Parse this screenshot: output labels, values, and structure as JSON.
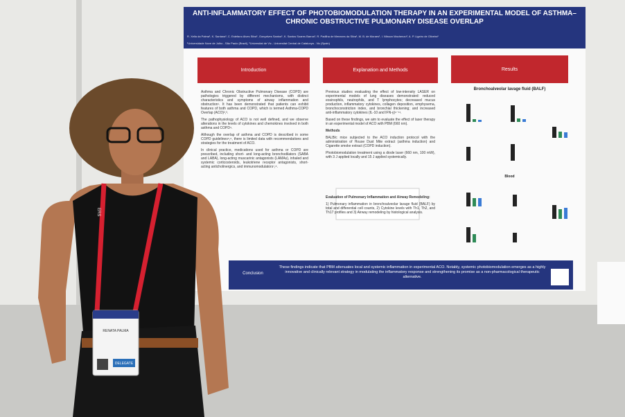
{
  "poster": {
    "title": "ANTI-INFLAMMATORY EFFECT OF PHOTOBIOMODULATION THERAPY IN AN EXPERIMENTAL MODEL OF ASTHMA–CHRONIC OBSTRUCTIVE PULMONARY DISEASE OVERLAP",
    "authors": "R. Xella da Palma¹, K. Santana¹, C. Estefano Alves Silva¹, Gonçalves Santos¹, K. Santos Soares Barros¹, R. Padilha de Menezes da Silva¹, M. B. de Moraes¹, I. Nilsson Machenzo², A. P. Ligeiro de Oliveira¹",
    "affiliations": "¹Universidade Nove de Julho - São Paulo (Brazil), ²Universitat de Vic - Universitat Central de Catalunya - Vic (Spain)",
    "introduction": {
      "heading": "Introduction",
      "paragraphs": [
        "Asthma and Chronic Obstructive Pulmonary Disease (COPD) are pathologies triggered by different mechanisms, with distinct characteristics and symptoms of airway inflammation and obstruction¹. It has been demonstrated that patients can exhibit features of both asthma and COPD, which is termed Asthma-COPD Overlap (ACO)²,³.",
        "The pathophysiology of ACO is not well defined, and we observe alterations in the levels of cytokines and chemokines involved in both asthma and COPD⁴.",
        "Although the overlap of asthma and COPD is described in some COPD guidelines⁵,⁶, there is limited data with recommendations and strategies for the treatment of ACO.",
        "In clinical practice, medications used for asthma or COPD are prescribed, including short- and long-acting bronchodilators (SABA and LABA), long-acting muscarinic antagonists (LAMAs), inhaled and systemic corticosteroids, leukotriene receptor antagonists, short-acting anticholinergics, and immunomodulators⁷,⁸."
      ]
    },
    "methods": {
      "heading": "Explanation and Methods",
      "paragraphs": [
        "Previous studies evaluating the effect of low-intensity LASER on experimental models of lung diseases demonstrated: reduced eosinophils, neutrophils, and T lymphocytes; decreased mucus production, inflammatory cytokines, collagen deposition, emphysema, bronchoconstriction index, and bronchial thickening; and increased anti-inflammatory cytokines (IL-10 and IFN-γ)⁹⁻¹¹.",
        "Based on these findings, we aim to evaluate the effect of laser therapy in an experimental model of ACO with PBM (660 nm).",
        "Methods",
        "BALB/c mice subjected to the ACO induction protocol with the administration of House Dust Mite extract (asthma induction) and Cigarette smoke extract (COPD induction).",
        "Photobiomodulation treatment using a diode laser (660 nm, 100 mW), with 3 J applied locally and 15 J applied systemically.",
        "Evaluation of Pulmonary Inflammation and Airway Remodeling:",
        "1) Pulmonary inflammation in bronchoalveolar lavage fluid (BALF) by total and differential cell counts, 2) Cytokine levels with Th1, Th2, and Th17 profiles and 3) Airway remodeling by histological analysis."
      ]
    },
    "results": {
      "heading": "Results",
      "balf": "Bronchoalveolar lavage fluid (BALF)",
      "blood": "Blood"
    },
    "conclusion": {
      "heading": "Conclusion",
      "text": "These findings indicate that PBM attenuates local and systemic inflammation in experimental ACO. Notably, systemic photobiomodulation emerges as a highly innovative and clinically relevant strategy in modulating the inflammatory response and strengthening its promise as a non-pharmacological therapeutic alternative."
    }
  },
  "badge": {
    "lanyard": "ERS",
    "name": "RENATA PALMA",
    "role": "DELEGATE"
  }
}
